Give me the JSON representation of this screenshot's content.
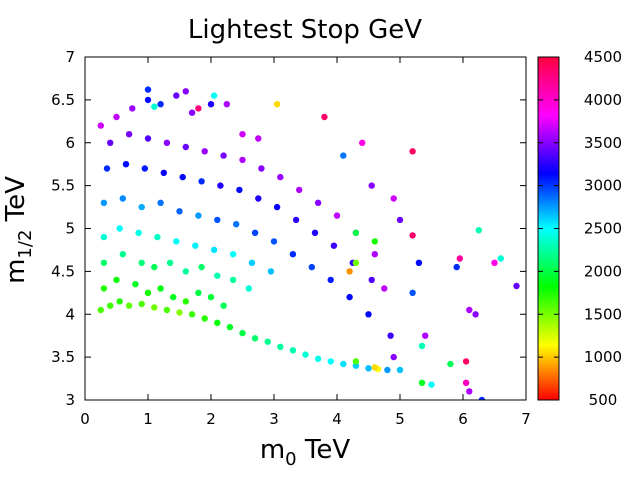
{
  "chart_data": {
    "type": "scatter",
    "title": "Lightest Stop GeV",
    "xlabel": {
      "main": "m",
      "sub": "0",
      "unit": " TeV"
    },
    "ylabel": {
      "main": "m",
      "sub": "1/2",
      "unit": " TeV"
    },
    "xlim": [
      0,
      7
    ],
    "ylim": [
      3,
      7
    ],
    "x_ticks": [
      0,
      1,
      2,
      3,
      4,
      5,
      6,
      7
    ],
    "x_tick_labels": [
      "0",
      "1",
      "2",
      "3",
      "4",
      "5",
      "6",
      "7"
    ],
    "y_ticks": [
      3,
      3.5,
      4,
      4.5,
      5,
      5.5,
      6,
      6.5,
      7
    ],
    "y_tick_labels": [
      "3",
      "3.5",
      "4",
      "4.5",
      "5",
      "5.5",
      "6",
      "6.5",
      "7"
    ],
    "colorbar": {
      "range": [
        500,
        4500
      ],
      "ticks": [
        500,
        1000,
        1500,
        2000,
        2500,
        3000,
        3500,
        4000,
        4500
      ],
      "tick_labels": [
        "500",
        "1000",
        "1500",
        "2000",
        "2500",
        "3000",
        "3500",
        "4000",
        "4500"
      ],
      "palette": "hsv-rainbow"
    },
    "grid": false,
    "legend": "none",
    "points": [
      [
        0.25,
        4.05,
        1700
      ],
      [
        0.4,
        4.1,
        1750
      ],
      [
        0.55,
        4.15,
        1800
      ],
      [
        0.7,
        4.1,
        1650
      ],
      [
        0.9,
        4.12,
        1700
      ],
      [
        1.1,
        4.08,
        1600
      ],
      [
        1.3,
        4.05,
        1700
      ],
      [
        1.5,
        4.02,
        1550
      ],
      [
        1.7,
        4.0,
        1750
      ],
      [
        1.9,
        3.95,
        1800
      ],
      [
        2.1,
        3.9,
        1900
      ],
      [
        2.3,
        3.85,
        2000
      ],
      [
        2.5,
        3.78,
        2100
      ],
      [
        2.7,
        3.72,
        2200
      ],
      [
        2.9,
        3.68,
        2300
      ],
      [
        3.1,
        3.62,
        2350
      ],
      [
        3.3,
        3.58,
        2400
      ],
      [
        3.5,
        3.53,
        2500
      ],
      [
        3.7,
        3.48,
        2550
      ],
      [
        3.9,
        3.45,
        2600
      ],
      [
        4.1,
        3.42,
        2700
      ],
      [
        4.3,
        3.4,
        2750
      ],
      [
        4.5,
        3.37,
        2800
      ],
      [
        4.65,
        3.36,
        1200
      ],
      [
        4.8,
        3.35,
        2900
      ],
      [
        0.3,
        4.3,
        1800
      ],
      [
        0.5,
        4.4,
        1900
      ],
      [
        0.8,
        4.35,
        2000
      ],
      [
        1.0,
        4.25,
        1850
      ],
      [
        1.2,
        4.3,
        1950
      ],
      [
        1.4,
        4.2,
        2000
      ],
      [
        1.6,
        4.15,
        1800
      ],
      [
        1.8,
        4.25,
        2100
      ],
      [
        2.0,
        4.2,
        2050
      ],
      [
        2.2,
        4.1,
        2150
      ],
      [
        0.3,
        4.6,
        2200
      ],
      [
        0.6,
        4.7,
        2300
      ],
      [
        0.9,
        4.6,
        2250
      ],
      [
        1.1,
        4.55,
        2150
      ],
      [
        1.35,
        4.6,
        2300
      ],
      [
        1.6,
        4.5,
        2350
      ],
      [
        1.85,
        4.55,
        2200
      ],
      [
        2.1,
        4.45,
        2400
      ],
      [
        2.35,
        4.4,
        2350
      ],
      [
        2.6,
        4.3,
        2500
      ],
      [
        0.3,
        4.9,
        2500
      ],
      [
        0.55,
        5.0,
        2600
      ],
      [
        0.85,
        4.95,
        2550
      ],
      [
        1.15,
        4.9,
        2450
      ],
      [
        1.45,
        4.85,
        2600
      ],
      [
        1.75,
        4.8,
        2650
      ],
      [
        2.05,
        4.75,
        2700
      ],
      [
        2.35,
        4.7,
        2600
      ],
      [
        2.65,
        4.6,
        2750
      ],
      [
        2.95,
        4.5,
        2800
      ],
      [
        0.3,
        5.3,
        2900
      ],
      [
        0.6,
        5.35,
        2950
      ],
      [
        0.9,
        5.25,
        2850
      ],
      [
        1.2,
        5.3,
        3000
      ],
      [
        1.5,
        5.2,
        3050
      ],
      [
        1.8,
        5.15,
        2900
      ],
      [
        2.1,
        5.1,
        3100
      ],
      [
        2.4,
        5.05,
        3000
      ],
      [
        2.7,
        4.95,
        3150
      ],
      [
        3.0,
        4.85,
        3100
      ],
      [
        3.3,
        4.7,
        3200
      ],
      [
        3.6,
        4.55,
        3150
      ],
      [
        3.9,
        4.4,
        3250
      ],
      [
        4.2,
        4.2,
        3300
      ],
      [
        4.5,
        4.0,
        3300
      ],
      [
        0.35,
        5.7,
        3200
      ],
      [
        0.65,
        5.75,
        3300
      ],
      [
        0.95,
        5.7,
        3250
      ],
      [
        1.25,
        5.65,
        3350
      ],
      [
        1.55,
        5.6,
        3300
      ],
      [
        1.85,
        5.55,
        3200
      ],
      [
        2.15,
        5.5,
        3400
      ],
      [
        2.45,
        5.45,
        3300
      ],
      [
        2.75,
        5.35,
        3400
      ],
      [
        3.05,
        5.25,
        3350
      ],
      [
        3.35,
        5.1,
        3450
      ],
      [
        3.65,
        4.95,
        3400
      ],
      [
        3.95,
        4.8,
        3500
      ],
      [
        4.25,
        4.6,
        3450
      ],
      [
        4.55,
        4.4,
        3550
      ],
      [
        0.4,
        6.0,
        3600
      ],
      [
        0.7,
        6.1,
        3650
      ],
      [
        1.0,
        6.05,
        3550
      ],
      [
        1.3,
        6.0,
        3700
      ],
      [
        1.6,
        5.95,
        3600
      ],
      [
        1.9,
        5.9,
        3750
      ],
      [
        2.2,
        5.85,
        3650
      ],
      [
        2.5,
        5.8,
        3800
      ],
      [
        2.8,
        5.7,
        3700
      ],
      [
        3.1,
        5.6,
        3750
      ],
      [
        3.4,
        5.45,
        3800
      ],
      [
        3.7,
        5.3,
        3700
      ],
      [
        4.0,
        5.15,
        3850
      ],
      [
        4.3,
        4.95,
        3750
      ],
      [
        4.6,
        4.7,
        3800
      ],
      [
        0.25,
        6.2,
        3900
      ],
      [
        0.5,
        6.3,
        3850
      ],
      [
        0.75,
        6.4,
        3750
      ],
      [
        1.0,
        6.5,
        3300
      ],
      [
        1.2,
        6.45,
        3200
      ],
      [
        1.45,
        6.55,
        3600
      ],
      [
        1.7,
        6.35,
        3700
      ],
      [
        2.0,
        6.45,
        3400
      ],
      [
        2.05,
        6.55,
        2600
      ],
      [
        2.25,
        6.45,
        3800
      ],
      [
        2.5,
        6.1,
        3900
      ],
      [
        2.75,
        6.05,
        3850
      ],
      [
        3.05,
        6.45,
        1100
      ],
      [
        3.8,
        6.3,
        4450
      ],
      [
        4.1,
        5.85,
        3000
      ],
      [
        4.4,
        6.0,
        4100
      ],
      [
        4.55,
        5.5,
        3700
      ],
      [
        4.9,
        5.35,
        3900
      ],
      [
        5.0,
        5.1,
        3600
      ],
      [
        5.2,
        5.9,
        4450
      ],
      [
        1.6,
        6.6,
        3700
      ],
      [
        1.0,
        6.62,
        3200
      ],
      [
        1.1,
        6.42,
        2500
      ],
      [
        1.8,
        6.4,
        4400
      ],
      [
        5.2,
        4.92,
        4450
      ],
      [
        5.3,
        4.6,
        3300
      ],
      [
        5.2,
        4.25,
        3100
      ],
      [
        5.4,
        3.75,
        3800
      ],
      [
        5.35,
        3.63,
        2400
      ],
      [
        5.35,
        3.2,
        2000
      ],
      [
        5.5,
        3.18,
        2600
      ],
      [
        5.8,
        3.42,
        2150
      ],
      [
        5.9,
        4.55,
        3200
      ],
      [
        5.95,
        4.65,
        4300
      ],
      [
        6.05,
        3.45,
        4450
      ],
      [
        6.05,
        3.2,
        4200
      ],
      [
        6.1,
        3.1,
        3800
      ],
      [
        6.1,
        4.05,
        3800
      ],
      [
        6.2,
        4.0,
        3700
      ],
      [
        6.25,
        4.98,
        2400
      ],
      [
        6.3,
        3.0,
        3200
      ],
      [
        6.5,
        4.6,
        4100
      ],
      [
        6.6,
        4.65,
        2500
      ],
      [
        6.85,
        4.33,
        3600
      ],
      [
        4.3,
        4.95,
        2100
      ],
      [
        4.3,
        4.6,
        1600
      ],
      [
        4.6,
        4.85,
        1850
      ],
      [
        4.2,
        4.5,
        900
      ],
      [
        4.3,
        3.45,
        1700
      ],
      [
        4.6,
        3.38,
        1100
      ],
      [
        4.9,
        3.5,
        3700
      ],
      [
        5.0,
        3.35,
        2800
      ],
      [
        4.85,
        3.75,
        3500
      ],
      [
        4.75,
        4.3,
        3850
      ]
    ]
  }
}
